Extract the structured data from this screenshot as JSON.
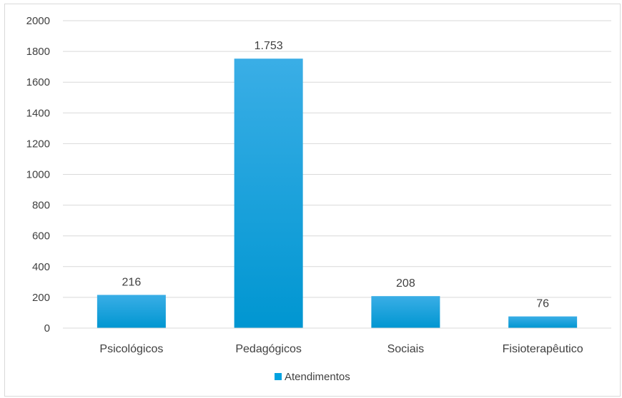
{
  "chart_data": {
    "type": "bar",
    "title": "",
    "xlabel": "",
    "ylabel": "",
    "categories": [
      "Psicológicos",
      "Pedagógicos",
      "Sociais",
      "Fisioterapêutico"
    ],
    "series": [
      {
        "name": "Atendimentos",
        "values": [
          216,
          1753,
          208,
          76
        ],
        "value_labels": [
          "216",
          "1.753",
          "208",
          "76"
        ],
        "color": "#00a2e0"
      }
    ],
    "y_ticks": [
      "0",
      "200",
      "400",
      "600",
      "800",
      "1000",
      "1200",
      "1400",
      "1600",
      "1800",
      "2000"
    ],
    "ylim": [
      0,
      2000
    ],
    "grid": true,
    "legend_position": "bottom"
  }
}
